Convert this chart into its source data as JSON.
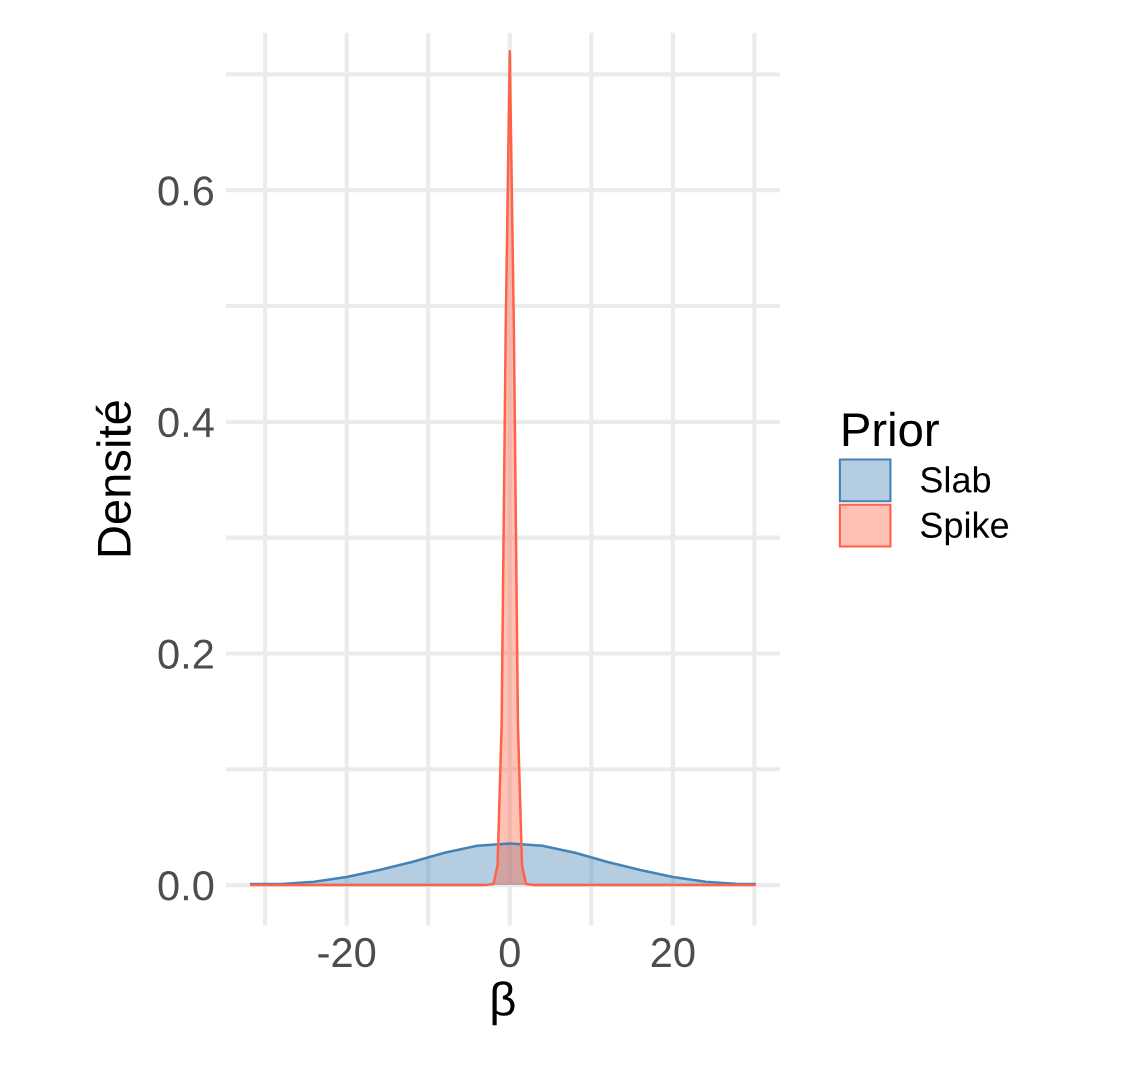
{
  "chart_data": {
    "type": "area",
    "xlabel": "β",
    "ylabel": "Densité",
    "legend_title": "Prior",
    "legend": "right",
    "grid": true,
    "xlim": [
      -34.8,
      33.1
    ],
    "ylim": [
      -0.035,
      0.736
    ],
    "xticks": [
      {
        "value": -30,
        "label": null
      },
      -20,
      {
        "value": -10,
        "label": null
      },
      0,
      {
        "value": 10,
        "label": null
      },
      20,
      {
        "value": 30,
        "label": null
      }
    ],
    "yticks": [
      {
        "value": 0,
        "label": "0.0"
      },
      {
        "value": 0.1,
        "label": null
      },
      0.2,
      {
        "value": 0.3,
        "label": null
      },
      0.4,
      {
        "value": 0.5,
        "label": null
      },
      0.6,
      {
        "value": 0.7,
        "label": null
      }
    ],
    "series": [
      {
        "name": "Slab",
        "color": "#4682b4",
        "x": [
          -31.7,
          -28,
          -24,
          -20,
          -16,
          -12,
          -8,
          -4,
          0,
          4,
          8,
          12,
          16,
          20,
          24,
          28,
          30
        ],
        "values": [
          0.001,
          0.001,
          0.003,
          0.007,
          0.013,
          0.02,
          0.028,
          0.034,
          0.036,
          0.034,
          0.028,
          0.02,
          0.013,
          0.007,
          0.003,
          0.001,
          0.001
        ]
      },
      {
        "name": "Spike",
        "color": "#ff6347",
        "x": [
          -31.7,
          -3,
          -2,
          -1.5,
          -1,
          -0.5,
          0,
          0.5,
          1,
          1.5,
          2,
          3,
          30
        ],
        "values": [
          0,
          0,
          0.001,
          0.017,
          0.138,
          0.48,
          0.72,
          0.48,
          0.138,
          0.017,
          0.001,
          0,
          0
        ]
      }
    ]
  }
}
